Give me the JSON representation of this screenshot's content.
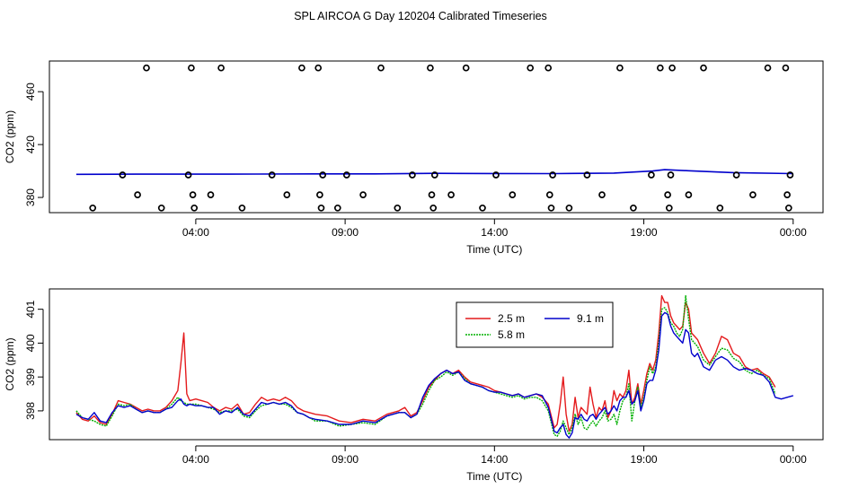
{
  "title": "SPL AIRCOA G  Day 120204  Calibrated Timeseries",
  "chart_data": [
    {
      "type": "scatter",
      "xlabel": "Time (UTC)",
      "ylabel": "CO2 (ppm)",
      "x_ticks": [
        "04:00",
        "09:00",
        "14:00",
        "19:00",
        "00:00"
      ],
      "x_tick_hours": [
        4,
        9,
        14,
        19,
        24
      ],
      "xlim_hours": [
        -0.9,
        25.0
      ],
      "y_ticks": [
        380,
        420,
        460
      ],
      "ylim": [
        368.5,
        483.2
      ],
      "grid": false,
      "calibration_points": {
        "x_hours": [
          0.55,
          1.55,
          2.05,
          2.35,
          2.85,
          3.75,
          3.85,
          3.9,
          3.95,
          4.5,
          4.85,
          5.55,
          6.55,
          7.05,
          7.55,
          8.1,
          8.15,
          8.2,
          8.25,
          8.75,
          9.05,
          9.6,
          10.2,
          10.75,
          11.25,
          11.85,
          11.9,
          11.95,
          12.0,
          12.55,
          13.05,
          13.6,
          14.05,
          14.6,
          15.2,
          15.8,
          15.85,
          15.9,
          15.95,
          16.5,
          17.1,
          17.6,
          18.2,
          18.65,
          19.25,
          19.55,
          19.8,
          19.85,
          19.9,
          19.95,
          20.5,
          21.0,
          21.55,
          22.1,
          22.65,
          23.15,
          23.75,
          23.8,
          23.85,
          23.9
        ],
        "values": [
          372,
          397,
          382,
          478,
          372,
          397,
          478,
          382,
          372,
          382,
          478,
          372,
          397,
          382,
          478,
          478,
          382,
          372,
          397,
          372,
          397,
          382,
          478,
          372,
          397,
          478,
          382,
          372,
          397,
          382,
          478,
          372,
          397,
          382,
          478,
          478,
          382,
          372,
          397,
          372,
          397,
          382,
          478,
          372,
          397,
          478,
          382,
          372,
          397,
          478,
          382,
          478,
          372,
          397,
          382,
          478,
          478,
          382,
          372,
          397
        ]
      },
      "trace": {
        "x_hours": [
          0,
          2,
          4,
          6,
          8,
          10,
          12,
          14,
          16,
          18,
          19.3,
          19.7,
          20.5,
          22,
          24
        ],
        "values": [
          397.5,
          397.6,
          397.6,
          397.7,
          397.8,
          397.8,
          398.2,
          398.1,
          398.0,
          398.4,
          400.0,
          401.0,
          400.2,
          398.8,
          398.0
        ]
      }
    },
    {
      "type": "line",
      "xlabel": "Time (UTC)",
      "ylabel": "CO2 (ppm)",
      "x_ticks": [
        "04:00",
        "09:00",
        "14:00",
        "19:00",
        "00:00"
      ],
      "x_tick_hours": [
        4,
        9,
        14,
        19,
        24
      ],
      "xlim_hours": [
        -0.9,
        25.0
      ],
      "y_ticks": [
        398,
        399,
        400,
        401
      ],
      "ylim": [
        397.15,
        401.6
      ],
      "grid": false,
      "legend": "top-center",
      "legend_layout": [
        [
          "2.5 m",
          "9.1 m"
        ],
        [
          "5.8 m"
        ]
      ],
      "series": [
        {
          "name": "2.5 m",
          "color": "#e41a1c",
          "x_hours": [
            0.0,
            0.2,
            0.4,
            0.6,
            0.8,
            1.0,
            1.2,
            1.4,
            1.6,
            1.8,
            2.0,
            2.2,
            2.4,
            2.6,
            2.8,
            3.0,
            3.2,
            3.4,
            3.5,
            3.6,
            3.7,
            3.8,
            4.0,
            4.2,
            4.4,
            4.6,
            4.8,
            5.0,
            5.2,
            5.4,
            5.6,
            5.8,
            6.0,
            6.2,
            6.4,
            6.6,
            6.8,
            7.0,
            7.2,
            7.4,
            7.6,
            7.8,
            8.0,
            8.4,
            8.8,
            9.2,
            9.6,
            10.0,
            10.4,
            10.8,
            11.0,
            11.2,
            11.4,
            11.6,
            11.8,
            12.0,
            12.2,
            12.4,
            12.6,
            12.8,
            13.0,
            13.2,
            13.4,
            13.6,
            13.8,
            14.0,
            14.2,
            14.4,
            14.6,
            14.8,
            15.0,
            15.2,
            15.4,
            15.6,
            15.8,
            16.0,
            16.1,
            16.2,
            16.3,
            16.4,
            16.5,
            16.6,
            16.7,
            16.8,
            16.9,
            17.0,
            17.1,
            17.2,
            17.3,
            17.4,
            17.5,
            17.6,
            17.7,
            17.8,
            17.9,
            18.0,
            18.1,
            18.2,
            18.3,
            18.4,
            18.5,
            18.6,
            18.7,
            18.8,
            18.9,
            19.0,
            19.1,
            19.2,
            19.3,
            19.4,
            19.5,
            19.6,
            19.7,
            19.8,
            19.9,
            20.0,
            20.1,
            20.2,
            20.3,
            20.4,
            20.5,
            20.6,
            20.7,
            20.8,
            20.9,
            21.0,
            21.2,
            21.4,
            21.6,
            21.8,
            22.0,
            22.2,
            22.4,
            22.6,
            22.8,
            23.0,
            23.2,
            23.4,
            23.6,
            23.8,
            24.0
          ],
          "values": [
            397.95,
            397.75,
            397.7,
            397.85,
            397.65,
            397.6,
            397.9,
            398.3,
            398.25,
            398.2,
            398.1,
            398.0,
            398.05,
            398.0,
            398.0,
            398.1,
            398.3,
            398.6,
            399.4,
            400.3,
            398.5,
            398.3,
            398.35,
            398.3,
            398.25,
            398.1,
            398.0,
            398.1,
            398.05,
            398.2,
            397.9,
            397.95,
            398.2,
            398.4,
            398.3,
            398.35,
            398.3,
            398.4,
            398.3,
            398.1,
            398.0,
            397.95,
            397.9,
            397.85,
            397.7,
            397.65,
            397.75,
            397.7,
            397.9,
            398.0,
            398.1,
            397.85,
            397.95,
            398.3,
            398.7,
            398.9,
            399.1,
            399.2,
            399.1,
            399.2,
            399.0,
            398.85,
            398.8,
            398.75,
            398.7,
            398.6,
            398.55,
            398.5,
            398.45,
            398.5,
            398.4,
            398.45,
            398.5,
            398.4,
            398.2,
            397.5,
            397.6,
            398.2,
            399.0,
            397.9,
            397.4,
            397.6,
            398.4,
            397.8,
            398.1,
            398.0,
            397.9,
            398.7,
            398.2,
            397.8,
            398.1,
            398.0,
            398.3,
            397.8,
            398.0,
            398.6,
            398.3,
            398.5,
            398.4,
            398.6,
            399.2,
            398.2,
            398.4,
            398.8,
            398.2,
            398.6,
            399.1,
            399.4,
            399.2,
            399.5,
            400.3,
            401.4,
            401.2,
            401.2,
            400.8,
            400.6,
            400.5,
            400.4,
            400.5,
            401.2,
            401.0,
            400.3,
            400.2,
            400.1,
            399.9,
            399.7,
            399.4,
            399.7,
            400.2,
            400.1,
            399.7,
            399.6,
            399.3,
            399.2,
            399.25,
            399.1,
            399.0,
            398.7,
            398.6,
            398.55,
            398.5
          ],
          "stop_hour": 23.4
        },
        {
          "name": "5.8 m",
          "color": "#00b000",
          "x_hours": [
            0.0,
            0.2,
            0.4,
            0.6,
            0.8,
            1.0,
            1.2,
            1.4,
            1.6,
            1.8,
            2.0,
            2.2,
            2.4,
            2.6,
            2.8,
            3.0,
            3.2,
            3.4,
            3.5,
            3.6,
            3.7,
            3.8,
            4.0,
            4.2,
            4.4,
            4.6,
            4.8,
            5.0,
            5.2,
            5.4,
            5.6,
            5.8,
            6.0,
            6.2,
            6.4,
            6.6,
            6.8,
            7.0,
            7.2,
            7.4,
            7.6,
            7.8,
            8.0,
            8.4,
            8.8,
            9.2,
            9.6,
            10.0,
            10.4,
            10.8,
            11.0,
            11.2,
            11.4,
            11.6,
            11.8,
            12.0,
            12.2,
            12.4,
            12.6,
            12.8,
            13.0,
            13.2,
            13.4,
            13.6,
            13.8,
            14.0,
            14.2,
            14.4,
            14.6,
            14.8,
            15.0,
            15.2,
            15.4,
            15.6,
            15.8,
            16.0,
            16.1,
            16.2,
            16.3,
            16.4,
            16.5,
            16.6,
            16.7,
            16.8,
            16.9,
            17.0,
            17.1,
            17.2,
            17.3,
            17.4,
            17.5,
            17.6,
            17.7,
            17.8,
            17.9,
            18.0,
            18.1,
            18.2,
            18.3,
            18.4,
            18.5,
            18.6,
            18.7,
            18.8,
            18.9,
            19.0,
            19.1,
            19.2,
            19.3,
            19.4,
            19.5,
            19.6,
            19.7,
            19.8,
            19.9,
            20.0,
            20.1,
            20.2,
            20.3,
            20.4,
            20.5,
            20.6,
            20.7,
            20.8,
            20.9,
            21.0,
            21.2,
            21.4,
            21.6,
            21.8,
            22.0,
            22.2,
            22.4,
            22.6,
            22.8,
            23.0,
            23.2,
            23.4,
            23.6,
            23.8,
            24.0
          ],
          "values": [
            398.0,
            397.8,
            397.75,
            397.7,
            397.6,
            397.55,
            397.85,
            398.2,
            398.15,
            398.2,
            398.05,
            397.95,
            398.0,
            397.95,
            397.95,
            398.05,
            398.2,
            398.4,
            398.3,
            398.25,
            398.2,
            398.2,
            398.2,
            398.15,
            398.1,
            398.05,
            397.95,
            398.0,
            398.0,
            398.05,
            397.85,
            397.8,
            398.0,
            398.15,
            398.2,
            398.25,
            398.2,
            398.2,
            398.1,
            397.95,
            397.9,
            397.8,
            397.7,
            397.7,
            397.55,
            397.6,
            397.65,
            397.6,
            397.85,
            397.95,
            397.95,
            397.8,
            397.9,
            398.2,
            398.6,
            398.9,
            399.0,
            399.15,
            399.05,
            399.15,
            398.95,
            398.8,
            398.75,
            398.7,
            398.6,
            398.55,
            398.5,
            398.45,
            398.4,
            398.45,
            398.35,
            398.4,
            398.4,
            398.3,
            398.0,
            397.3,
            397.25,
            397.4,
            397.7,
            397.5,
            397.3,
            397.5,
            397.9,
            397.6,
            397.8,
            397.5,
            397.45,
            397.6,
            397.7,
            397.55,
            397.7,
            397.8,
            398.0,
            397.7,
            397.75,
            397.9,
            397.6,
            398.0,
            398.3,
            398.4,
            398.8,
            397.7,
            398.3,
            398.7,
            398.1,
            398.4,
            398.9,
            399.3,
            399.1,
            399.3,
            400.0,
            401.0,
            401.05,
            400.9,
            400.6,
            400.5,
            400.3,
            400.2,
            400.4,
            401.4,
            400.7,
            400.1,
            400.0,
            399.9,
            399.7,
            399.5,
            399.35,
            399.6,
            399.85,
            399.8,
            399.55,
            399.45,
            399.2,
            399.1,
            399.2,
            399.05,
            398.95,
            398.5,
            398.4,
            398.4,
            398.45
          ],
          "stop_hour": 23.4
        },
        {
          "name": "9.1 m",
          "color": "#0000cc",
          "x_hours": [
            0.0,
            0.2,
            0.4,
            0.6,
            0.8,
            1.0,
            1.2,
            1.4,
            1.6,
            1.8,
            2.0,
            2.2,
            2.4,
            2.6,
            2.8,
            3.0,
            3.2,
            3.4,
            3.5,
            3.6,
            3.7,
            3.8,
            4.0,
            4.2,
            4.4,
            4.6,
            4.8,
            5.0,
            5.2,
            5.4,
            5.6,
            5.8,
            6.0,
            6.2,
            6.4,
            6.6,
            6.8,
            7.0,
            7.2,
            7.4,
            7.6,
            7.8,
            8.0,
            8.4,
            8.8,
            9.2,
            9.6,
            10.0,
            10.4,
            10.8,
            11.0,
            11.2,
            11.4,
            11.6,
            11.8,
            12.0,
            12.2,
            12.4,
            12.6,
            12.8,
            13.0,
            13.2,
            13.4,
            13.6,
            13.8,
            14.0,
            14.2,
            14.4,
            14.6,
            14.8,
            15.0,
            15.2,
            15.4,
            15.6,
            15.8,
            16.0,
            16.1,
            16.2,
            16.3,
            16.4,
            16.5,
            16.6,
            16.7,
            16.8,
            16.9,
            17.0,
            17.1,
            17.2,
            17.3,
            17.4,
            17.5,
            17.6,
            17.7,
            17.8,
            17.9,
            18.0,
            18.1,
            18.2,
            18.3,
            18.4,
            18.5,
            18.6,
            18.7,
            18.8,
            18.9,
            19.0,
            19.1,
            19.2,
            19.3,
            19.4,
            19.5,
            19.6,
            19.7,
            19.8,
            19.9,
            20.0,
            20.1,
            20.2,
            20.3,
            20.4,
            20.5,
            20.6,
            20.7,
            20.8,
            20.9,
            21.0,
            21.2,
            21.4,
            21.6,
            21.8,
            22.0,
            22.2,
            22.4,
            22.6,
            22.8,
            23.0,
            23.2,
            23.4,
            23.6,
            23.8,
            24.0
          ],
          "values": [
            397.9,
            397.8,
            397.75,
            397.95,
            397.7,
            397.65,
            397.95,
            398.15,
            398.1,
            398.15,
            398.05,
            397.95,
            398.0,
            397.95,
            397.95,
            398.05,
            398.1,
            398.3,
            398.35,
            398.2,
            398.15,
            398.2,
            398.15,
            398.15,
            398.1,
            398.1,
            397.9,
            398.0,
            397.95,
            398.1,
            397.9,
            397.85,
            398.05,
            398.25,
            398.2,
            398.25,
            398.2,
            398.25,
            398.15,
            397.95,
            397.9,
            397.8,
            397.75,
            397.7,
            397.6,
            397.6,
            397.7,
            397.65,
            397.85,
            397.95,
            397.95,
            397.8,
            397.9,
            398.4,
            398.75,
            398.95,
            399.1,
            399.2,
            399.1,
            399.15,
            398.9,
            398.8,
            398.75,
            398.7,
            398.6,
            398.55,
            398.55,
            398.5,
            398.45,
            398.5,
            398.4,
            398.45,
            398.5,
            398.45,
            398.1,
            397.4,
            397.35,
            397.5,
            397.6,
            397.3,
            397.2,
            397.35,
            397.8,
            397.75,
            397.9,
            397.75,
            397.7,
            397.85,
            397.9,
            397.75,
            397.9,
            398.0,
            398.1,
            397.9,
            398.0,
            398.15,
            398.0,
            398.3,
            398.4,
            398.4,
            398.6,
            398.2,
            398.3,
            398.6,
            398.0,
            398.3,
            398.8,
            398.9,
            398.9,
            399.2,
            399.8,
            400.8,
            400.9,
            400.85,
            400.5,
            400.3,
            400.2,
            400.1,
            400.0,
            400.4,
            400.3,
            399.7,
            399.6,
            399.7,
            399.5,
            399.3,
            399.2,
            399.5,
            399.6,
            399.5,
            399.3,
            399.2,
            399.25,
            399.2,
            399.1,
            399.05,
            398.85,
            398.4,
            398.35,
            398.4,
            398.45
          ],
          "stop_hour": 24.0
        }
      ]
    }
  ]
}
